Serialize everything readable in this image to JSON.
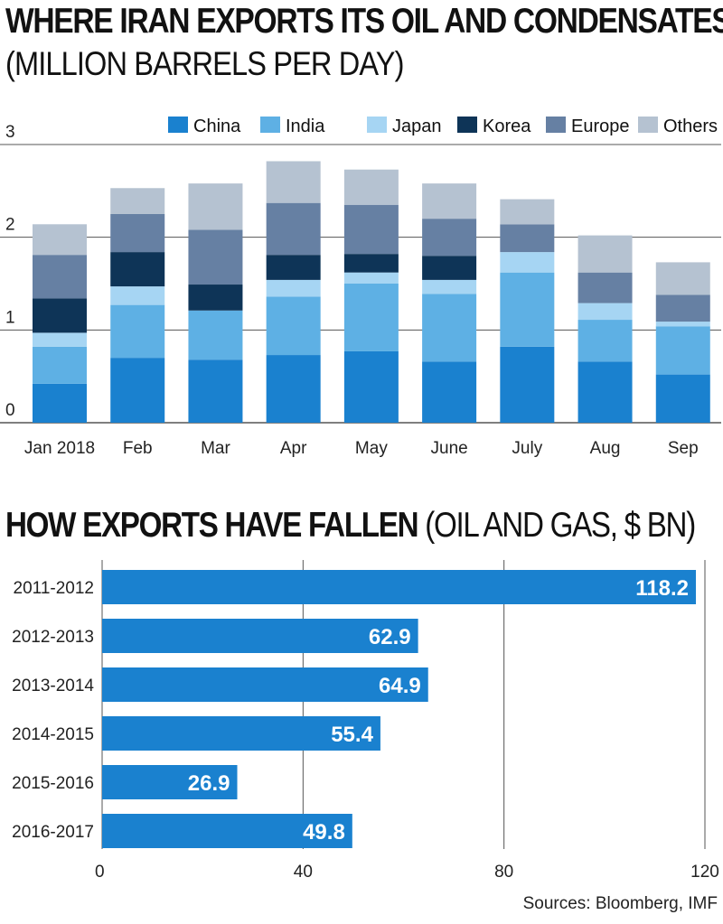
{
  "titles": {
    "chart1_title": "WHERE IRAN EXPORTS ITS OIL AND CONDENSATES",
    "chart1_subtitle": "(MILLION BARRELS PER DAY)",
    "chart2_title_bold": "HOW EXPORTS HAVE FALLEN",
    "chart2_title_rest": " (OIL AND GAS, $ BN)"
  },
  "source": "Sources: Bloomberg, IMF",
  "colors": {
    "China": "#1a81cf",
    "India": "#5eb0e4",
    "Japan": "#a6d5f3",
    "Korea": "#0e3457",
    "Europe": "#6680a3",
    "Others": "#b5c2d1",
    "hbar": "#1a81cf",
    "grid": "#555555"
  },
  "chart_data": [
    {
      "type": "bar",
      "stacked": true,
      "title": "WHERE IRAN EXPORTS ITS OIL AND CONDENSATES",
      "subtitle": "(MILLION BARRELS PER DAY)",
      "categories": [
        "Jan 2018",
        "Feb",
        "Mar",
        "Apr",
        "May",
        "June",
        "July",
        "Aug",
        "Sep"
      ],
      "ylim": [
        0,
        3
      ],
      "yticks": [
        "0",
        "1",
        "2",
        "3"
      ],
      "grid": true,
      "legend": "top-right",
      "series": [
        {
          "name": "China",
          "values": [
            0.42,
            0.7,
            0.68,
            0.73,
            0.77,
            0.66,
            0.82,
            0.66,
            0.52
          ]
        },
        {
          "name": "India",
          "values": [
            0.4,
            0.57,
            0.53,
            0.63,
            0.73,
            0.73,
            0.8,
            0.45,
            0.52
          ]
        },
        {
          "name": "Japan",
          "values": [
            0.15,
            0.2,
            0.0,
            0.18,
            0.12,
            0.15,
            0.22,
            0.18,
            0.05
          ]
        },
        {
          "name": "Korea",
          "values": [
            0.37,
            0.37,
            0.28,
            0.27,
            0.2,
            0.26,
            0.0,
            0.0,
            0.0
          ]
        },
        {
          "name": "Europe",
          "values": [
            0.47,
            0.41,
            0.59,
            0.56,
            0.53,
            0.4,
            0.3,
            0.33,
            0.29
          ]
        },
        {
          "name": "Others",
          "values": [
            0.33,
            0.28,
            0.5,
            0.45,
            0.38,
            0.38,
            0.27,
            0.4,
            0.35
          ]
        }
      ]
    },
    {
      "type": "bar",
      "orientation": "horizontal",
      "title": "HOW EXPORTS HAVE FALLEN (OIL AND GAS, $ BN)",
      "categories": [
        "2011-2012",
        "2012-2013",
        "2013-2014",
        "2014-2015",
        "2015-2016",
        "2016-2017"
      ],
      "values": [
        118.2,
        62.9,
        64.9,
        55.4,
        26.9,
        49.8
      ],
      "value_labels": [
        "118.2",
        "62.9",
        "64.9",
        "55.4",
        "26.9",
        "49.8"
      ],
      "xlim": [
        0,
        120
      ],
      "xticks": [
        "0",
        "40",
        "80",
        "120"
      ],
      "grid": true
    }
  ]
}
